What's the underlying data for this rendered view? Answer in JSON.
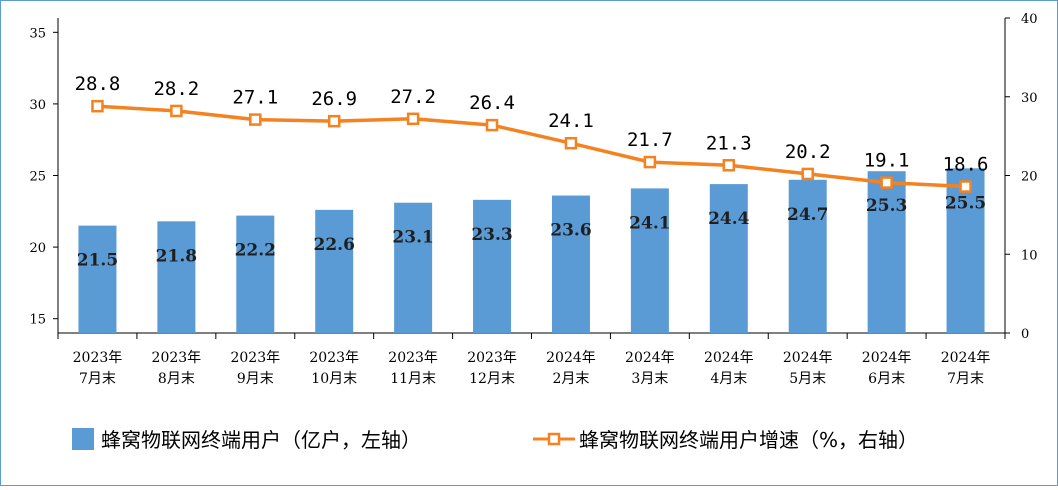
{
  "chart_data": {
    "type": "bar",
    "categories": [
      [
        "2023年",
        "7月末"
      ],
      [
        "2023年",
        "8月末"
      ],
      [
        "2023年",
        "9月末"
      ],
      [
        "2023年",
        "10月末"
      ],
      [
        "2023年",
        "11月末"
      ],
      [
        "2023年",
        "12月末"
      ],
      [
        "2024年",
        "2月末"
      ],
      [
        "2024年",
        "3月末"
      ],
      [
        "2024年",
        "4月末"
      ],
      [
        "2024年",
        "5月末"
      ],
      [
        "2024年",
        "6月末"
      ],
      [
        "2024年",
        "7月末"
      ]
    ],
    "series": [
      {
        "name": "蜂窝物联网终端用户（亿户，左轴）",
        "type": "bar",
        "axis": "left",
        "color": "#5b9bd5",
        "values": [
          21.5,
          21.8,
          22.2,
          22.6,
          23.1,
          23.3,
          23.6,
          24.1,
          24.4,
          24.7,
          25.3,
          25.5
        ],
        "labels": [
          "21.5",
          "21.8",
          "22.2",
          "22.6",
          "23.1",
          "23.3",
          "23.6",
          "24.1",
          "24.4",
          "24.7",
          "25.3",
          "25.5"
        ]
      },
      {
        "name": "蜂窝物联网终端用户增速（%，右轴）",
        "type": "line",
        "axis": "right",
        "color": "#f58220",
        "values": [
          28.8,
          28.2,
          27.1,
          26.9,
          27.2,
          26.4,
          24.1,
          21.7,
          21.3,
          20.2,
          19.1,
          18.6
        ],
        "labels": [
          "28.8",
          "28.2",
          "27.1",
          "26.9",
          "27.2",
          "26.4",
          "24.1",
          "21.7",
          "21.3",
          "20.2",
          "19.1",
          "18.6"
        ]
      }
    ],
    "left_axis": {
      "ylim": [
        14,
        36
      ],
      "ticks": [
        "15",
        "20",
        "25",
        "30",
        "35"
      ]
    },
    "right_axis": {
      "ylim": [
        0,
        40
      ],
      "ticks": [
        "0",
        "10",
        "20",
        "30",
        "40"
      ]
    },
    "legend_position": "bottom",
    "grid": false
  }
}
